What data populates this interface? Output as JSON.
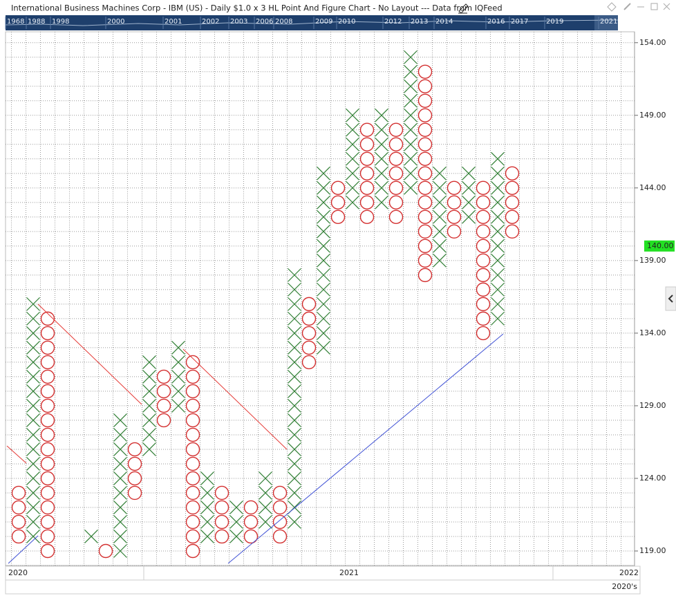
{
  "chart_data": {
    "type": "point_and_figure",
    "title": "International Business Machines Corp - IBM (US) - Daily $1.0 x 3 HL Point And Figure Chart - No Layout --- Data from IQFeed",
    "overview_years": [
      "1968",
      "1988",
      "1998",
      "2000",
      "2001",
      "2002",
      "2003",
      "2006",
      "2008",
      "2009",
      "2010",
      "2012",
      "2013",
      "2014",
      "2016",
      "2017",
      "2019",
      "2021"
    ],
    "x_labels": [
      "2020",
      "2021",
      "2022"
    ],
    "x_label_decade": "2020's",
    "box_size": 1,
    "ylim": [
      118,
      154.75
    ],
    "yticks": [
      {
        "value": 119,
        "label": "119.00"
      },
      {
        "value": 124,
        "label": "124.00"
      },
      {
        "value": 129,
        "label": "129.00"
      },
      {
        "value": 134,
        "label": "134.00"
      },
      {
        "value": 139,
        "label": "139.00"
      },
      {
        "value": 144,
        "label": "144.00"
      },
      {
        "value": 149,
        "label": "149.00"
      },
      {
        "value": 154,
        "label": "154.00"
      }
    ],
    "last_price": {
      "value": 140,
      "label": "140.00"
    },
    "x_color": "#2e7d32",
    "o_color": "#d32f2f",
    "columns": [
      {
        "type": "O",
        "low": 120,
        "high": 123
      },
      {
        "type": "X",
        "low": 120,
        "high": 136
      },
      {
        "type": "O",
        "low": 119,
        "high": 135
      },
      null,
      null,
      {
        "type": "X",
        "low": 120,
        "high": 120
      },
      {
        "type": "O",
        "low": 119,
        "high": 119
      },
      {
        "type": "X",
        "low": 119,
        "high": 128
      },
      {
        "type": "O",
        "low": 123,
        "high": 126
      },
      {
        "type": "X",
        "low": 126,
        "high": 132
      },
      {
        "type": "O",
        "low": 128,
        "high": 131
      },
      {
        "type": "X",
        "low": 129,
        "high": 133
      },
      {
        "type": "O",
        "low": 119,
        "high": 132
      },
      {
        "type": "X",
        "low": 120,
        "high": 124
      },
      {
        "type": "O",
        "low": 120,
        "high": 123
      },
      {
        "type": "X",
        "low": 120,
        "high": 122
      },
      {
        "type": "O",
        "low": 120,
        "high": 122
      },
      {
        "type": "X",
        "low": 121,
        "high": 124
      },
      {
        "type": "O",
        "low": 120,
        "high": 123
      },
      {
        "type": "X",
        "low": 121,
        "high": 138
      },
      {
        "type": "O",
        "low": 132,
        "high": 136
      },
      {
        "type": "X",
        "low": 133,
        "high": 145
      },
      {
        "type": "O",
        "low": 142,
        "high": 144
      },
      {
        "type": "X",
        "low": 143,
        "high": 149
      },
      {
        "type": "O",
        "low": 142,
        "high": 148
      },
      {
        "type": "X",
        "low": 143,
        "high": 149
      },
      {
        "type": "O",
        "low": 142,
        "high": 148
      },
      {
        "type": "X",
        "low": 144,
        "high": 153
      },
      {
        "type": "O",
        "low": 138,
        "high": 152
      },
      {
        "type": "X",
        "low": 139,
        "high": 145
      },
      {
        "type": "O",
        "low": 141,
        "high": 144
      },
      {
        "type": "X",
        "low": 142,
        "high": 145
      },
      {
        "type": "O",
        "low": 134,
        "high": 144
      },
      {
        "type": "X",
        "low": 135,
        "high": 146
      },
      {
        "type": "O",
        "low": 141,
        "high": 145
      }
    ]
  }
}
